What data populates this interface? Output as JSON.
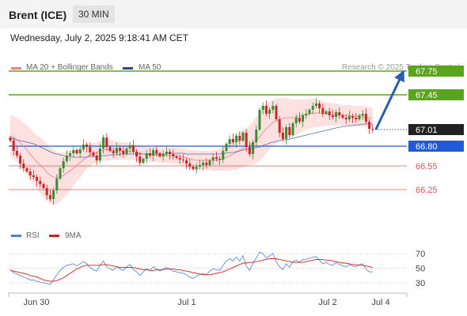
{
  "header": {
    "instrument": "Brent (ICE)",
    "timeframe": "30 MIN"
  },
  "datetime": "Wednesday, July 2, 2025 9:18:41 AM CET",
  "legend": {
    "ma20": "MA 20 + Bollinger Bands",
    "ma50": "MA 50",
    "credit": "Research © 2025 Trading Central",
    "rsi": "RSI",
    "ma9": "9MA"
  },
  "colors": {
    "bull": "#3a8c32",
    "bear": "#c92727",
    "band": "#fde0e0",
    "ma20": "#f08080",
    "ma50": "#5a6aa8",
    "support_blue": "#1f5bd6",
    "resistance_green": "#5aa51c",
    "support_red": "#e05555",
    "rsi": "#4a7fd4",
    "rsi_ma": "#d41e1e"
  },
  "chart_data": [
    {
      "type": "candlestick",
      "title": "",
      "ylim": [
        65.95,
        67.95
      ],
      "x_ticks": [
        "Jun 30",
        "Jul 1",
        "Jul 2",
        "Jul 4"
      ],
      "levels": [
        {
          "label": "67.75",
          "value": 67.75,
          "kind": "resistance"
        },
        {
          "label": "67.45",
          "value": 67.45,
          "kind": "resistance"
        },
        {
          "label": "67.01",
          "value": 67.01,
          "kind": "last"
        },
        {
          "label": "66.80",
          "value": 66.8,
          "kind": "pivot"
        },
        {
          "label": "66.55",
          "value": 66.55,
          "kind": "support"
        },
        {
          "label": "66.25",
          "value": 66.25,
          "kind": "support"
        }
      ],
      "forecast_arrow": {
        "from": 67.01,
        "to": 67.75
      },
      "close": [
        66.87,
        66.74,
        66.68,
        66.58,
        66.52,
        66.48,
        66.43,
        66.41,
        66.36,
        66.32,
        66.27,
        66.18,
        66.13,
        66.24,
        66.39,
        66.52,
        66.61,
        66.68,
        66.71,
        66.75,
        66.71,
        66.76,
        66.82,
        66.79,
        66.72,
        66.68,
        66.62,
        66.77,
        66.91,
        66.79,
        66.74,
        66.71,
        66.78,
        66.74,
        66.7,
        66.77,
        66.81,
        66.73,
        66.67,
        66.59,
        66.64,
        66.71,
        66.68,
        66.75,
        66.71,
        66.67,
        66.7,
        66.73,
        66.7,
        66.67,
        66.65,
        66.63,
        66.62,
        66.58,
        66.54,
        66.51,
        66.54,
        66.56,
        66.59,
        66.56,
        66.62,
        66.66,
        66.64,
        66.63,
        66.74,
        66.83,
        66.89,
        66.85,
        66.93,
        66.87,
        66.97,
        66.79,
        66.7,
        66.85,
        67.01,
        67.26,
        67.31,
        67.21,
        67.26,
        67.31,
        67.14,
        66.97,
        66.89,
        67.04,
        66.94,
        67.09,
        67.16,
        67.11,
        67.19,
        67.21,
        67.26,
        67.31,
        67.34,
        67.28,
        67.21,
        67.24,
        67.19,
        67.17,
        67.23,
        67.19,
        67.16,
        67.14,
        67.18,
        67.16,
        67.14,
        67.19,
        67.21,
        67.11,
        67.02,
        67.01
      ],
      "ma20": [
        66.93,
        66.91,
        66.88,
        66.84,
        66.8,
        66.75,
        66.7,
        66.65,
        66.6,
        66.56,
        66.52,
        66.47,
        66.43,
        66.41,
        66.4,
        66.41,
        66.43,
        66.46,
        66.49,
        66.52,
        66.56,
        66.59,
        66.63,
        66.66,
        66.69,
        66.71,
        66.72,
        66.74,
        66.75,
        66.76,
        66.75,
        66.75,
        66.74,
        66.74,
        66.74,
        66.74,
        66.73,
        66.73,
        66.72,
        66.71,
        66.7,
        66.7,
        66.69,
        66.69,
        66.69,
        66.68,
        66.68,
        66.68,
        66.68,
        66.68,
        66.68,
        66.67,
        66.66,
        66.65,
        66.64,
        66.63,
        66.62,
        66.62,
        66.62,
        66.62,
        66.62,
        66.62,
        66.62,
        66.63,
        66.64,
        66.66,
        66.68,
        66.7,
        66.72,
        66.75,
        66.77,
        66.79,
        66.81,
        66.84,
        66.87,
        66.92,
        66.97,
        67.02,
        67.06,
        67.1,
        67.12,
        67.14,
        67.15,
        67.16,
        67.16,
        67.16,
        67.17,
        67.18,
        67.19,
        67.2,
        67.21,
        67.22,
        67.22,
        67.22,
        67.21,
        67.21,
        67.21,
        67.2,
        67.2,
        67.2,
        67.19,
        67.19,
        67.19,
        67.18,
        67.18,
        67.18,
        67.18,
        67.17,
        67.16,
        67.15
      ],
      "ma50": [
        66.9,
        66.89,
        66.88,
        66.87,
        66.86,
        66.85,
        66.84,
        66.83,
        66.81,
        66.79,
        66.77,
        66.75,
        66.73,
        66.71,
        66.7,
        66.69,
        66.68,
        66.67,
        66.67,
        66.66,
        66.66,
        66.66,
        66.66,
        66.66,
        66.67,
        66.67,
        66.67,
        66.67,
        66.68,
        66.68,
        66.69,
        66.69,
        66.69,
        66.7,
        66.7,
        66.7,
        66.7,
        66.7,
        66.7,
        66.7,
        66.7,
        66.7,
        66.7,
        66.7,
        66.7,
        66.7,
        66.7,
        66.7,
        66.71,
        66.71,
        66.71,
        66.71,
        66.71,
        66.7,
        66.7,
        66.7,
        66.7,
        66.7,
        66.7,
        66.7,
        66.7,
        66.7,
        66.7,
        66.7,
        66.71,
        66.71,
        66.72,
        66.72,
        66.73,
        66.74,
        66.75,
        66.76,
        66.76,
        66.77,
        66.78,
        66.79,
        66.81,
        66.82,
        66.84,
        66.85,
        66.86,
        66.87,
        66.88,
        66.88,
        66.89,
        66.9,
        66.91,
        66.92,
        66.93,
        66.94,
        66.95,
        66.96,
        66.97,
        66.98,
        66.99,
        67.0,
        67.01,
        67.02,
        67.03,
        67.04,
        67.05,
        67.05,
        67.06,
        67.06,
        67.07,
        67.07,
        67.08,
        67.08,
        67.08,
        67.08
      ],
      "band_width": [
        0.26,
        0.27,
        0.28,
        0.29,
        0.3,
        0.31,
        0.32,
        0.33,
        0.34,
        0.35,
        0.36,
        0.36,
        0.36,
        0.35,
        0.33,
        0.31,
        0.29,
        0.27,
        0.25,
        0.23,
        0.21,
        0.19,
        0.17,
        0.15,
        0.14,
        0.13,
        0.13,
        0.13,
        0.14,
        0.14,
        0.13,
        0.12,
        0.11,
        0.11,
        0.11,
        0.11,
        0.1,
        0.1,
        0.1,
        0.1,
        0.09,
        0.09,
        0.09,
        0.09,
        0.09,
        0.09,
        0.09,
        0.09,
        0.1,
        0.1,
        0.1,
        0.1,
        0.11,
        0.11,
        0.11,
        0.12,
        0.12,
        0.12,
        0.12,
        0.12,
        0.12,
        0.13,
        0.13,
        0.14,
        0.15,
        0.17,
        0.19,
        0.2,
        0.22,
        0.23,
        0.24,
        0.24,
        0.25,
        0.27,
        0.29,
        0.31,
        0.32,
        0.31,
        0.3,
        0.29,
        0.28,
        0.27,
        0.26,
        0.25,
        0.24,
        0.23,
        0.22,
        0.21,
        0.2,
        0.19,
        0.19,
        0.18,
        0.18,
        0.17,
        0.16,
        0.15,
        0.14,
        0.14,
        0.14,
        0.13,
        0.13,
        0.13,
        0.13,
        0.13,
        0.13,
        0.13,
        0.13,
        0.13,
        0.13,
        0.13
      ]
    },
    {
      "type": "line",
      "title": "",
      "ylim": [
        25,
        75
      ],
      "y_ticks": [
        70,
        50,
        30
      ],
      "series": [
        {
          "name": "RSI",
          "values": [
            48,
            44,
            42,
            40,
            38,
            36,
            34,
            34,
            32,
            31,
            30,
            29,
            28,
            34,
            41,
            47,
            51,
            54,
            55,
            56,
            53,
            56,
            59,
            56,
            51,
            48,
            46,
            54,
            60,
            52,
            49,
            47,
            52,
            49,
            47,
            52,
            55,
            48,
            45,
            40,
            45,
            49,
            47,
            52,
            49,
            46,
            49,
            51,
            49,
            46,
            45,
            44,
            43,
            41,
            38,
            36,
            39,
            41,
            43,
            41,
            46,
            49,
            48,
            47,
            54,
            60,
            63,
            60,
            65,
            60,
            67,
            53,
            47,
            57,
            64,
            72,
            70,
            64,
            67,
            70,
            59,
            52,
            48,
            56,
            51,
            59,
            61,
            58,
            62,
            62,
            64,
            65,
            66,
            61,
            56,
            58,
            55,
            54,
            58,
            55,
            53,
            52,
            55,
            53,
            52,
            55,
            56,
            49,
            45,
            45
          ]
        },
        {
          "name": "9MA",
          "values": [
            47,
            46,
            45,
            44,
            43,
            42,
            40,
            39,
            38,
            36,
            34,
            33,
            32,
            32,
            33,
            35,
            37,
            40,
            43,
            46,
            49,
            51,
            53,
            54,
            54,
            54,
            54,
            54,
            55,
            55,
            54,
            53,
            52,
            51,
            51,
            51,
            51,
            51,
            50,
            49,
            48,
            48,
            47,
            47,
            48,
            48,
            48,
            49,
            49,
            49,
            48,
            48,
            47,
            46,
            45,
            44,
            43,
            42,
            41,
            41,
            41,
            42,
            43,
            44,
            45,
            47,
            49,
            51,
            53,
            55,
            57,
            57,
            58,
            58,
            59,
            60,
            61,
            62,
            63,
            63,
            63,
            62,
            61,
            60,
            59,
            58,
            58,
            58,
            58,
            59,
            60,
            61,
            62,
            62,
            62,
            61,
            61,
            60,
            59,
            58,
            57,
            57,
            56,
            55,
            55,
            54,
            54,
            53,
            52,
            51
          ]
        }
      ]
    }
  ]
}
